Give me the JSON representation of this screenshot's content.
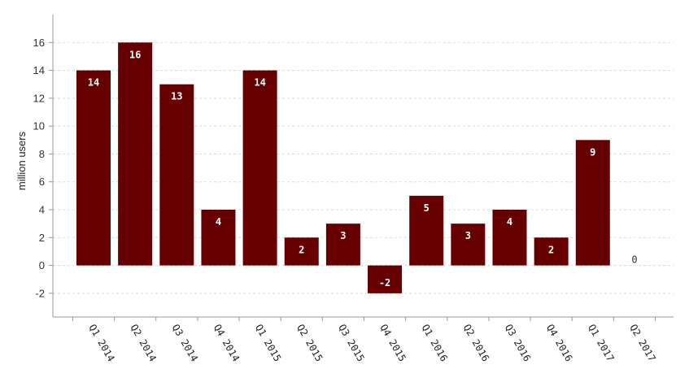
{
  "chart_data": {
    "type": "bar",
    "categories": [
      "Q1 2014",
      "Q2 2014",
      "Q3 2014",
      "Q4 2014",
      "Q1 2015",
      "Q2 2015",
      "Q3 2015",
      "Q4 2015",
      "Q1 2016",
      "Q2 2016",
      "Q3 2016",
      "Q4 2016",
      "Q1 2017",
      "Q2 2017"
    ],
    "values": [
      14,
      16,
      13,
      4,
      14,
      2,
      3,
      -2,
      5,
      3,
      4,
      2,
      9,
      0
    ],
    "title": "",
    "xlabel": "",
    "ylabel": "million users",
    "ylim": [
      -3.7,
      18
    ],
    "yticks": [
      -2,
      0,
      2,
      4,
      6,
      8,
      10,
      12,
      14,
      16
    ],
    "grid": true,
    "bar_color": "#660000",
    "legend": "none"
  }
}
